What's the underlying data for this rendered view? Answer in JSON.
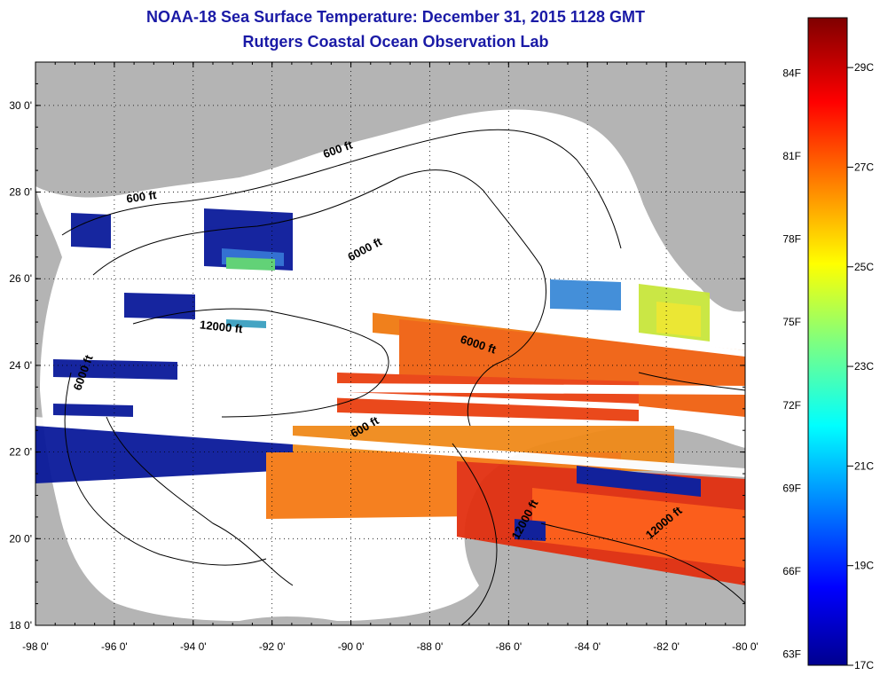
{
  "title": "NOAA-18 Sea Surface Temperature:  December 31, 2015 1128 GMT",
  "subtitle": "Rutgers Coastal Ocean Observation Lab",
  "map": {
    "lon_range": [
      -98,
      -80
    ],
    "lat_range": [
      18,
      31
    ],
    "lat_ticks": [
      {
        "value": 30,
        "label": "30 0'"
      },
      {
        "value": 28,
        "label": "28 0'"
      },
      {
        "value": 26,
        "label": "26 0'"
      },
      {
        "value": 24,
        "label": "24 0'"
      },
      {
        "value": 22,
        "label": "22 0'"
      },
      {
        "value": 20,
        "label": "20 0'"
      },
      {
        "value": 18,
        "label": "18 0'"
      }
    ],
    "lon_ticks": [
      {
        "value": -98,
        "label": "-98 0'"
      },
      {
        "value": -96,
        "label": "-96 0'"
      },
      {
        "value": -94,
        "label": "-94 0'"
      },
      {
        "value": -92,
        "label": "-92 0'"
      },
      {
        "value": -90,
        "label": "-90 0'"
      },
      {
        "value": -88,
        "label": "-88 0'"
      },
      {
        "value": -86,
        "label": "-86 0'"
      },
      {
        "value": -84,
        "label": "-84 0'"
      },
      {
        "value": -82,
        "label": "-82 0'"
      },
      {
        "value": -80,
        "label": "-80 0'"
      }
    ],
    "contour_labels": [
      {
        "text": "600 ft",
        "lon": -90.3,
        "lat": 28.9,
        "angle": -20
      },
      {
        "text": "600 ft",
        "lon": -95.3,
        "lat": 27.8,
        "angle": -8
      },
      {
        "text": "6000 ft",
        "lon": -89.6,
        "lat": 26.6,
        "angle": -28
      },
      {
        "text": "12000 ft",
        "lon": -93.3,
        "lat": 24.8,
        "angle": 6
      },
      {
        "text": "6000 ft",
        "lon": -96.7,
        "lat": 23.8,
        "angle": -70
      },
      {
        "text": "6000 ft",
        "lon": -86.8,
        "lat": 24.4,
        "angle": 18
      },
      {
        "text": "600 ft",
        "lon": -89.6,
        "lat": 22.5,
        "angle": -30
      },
      {
        "text": "12000 ft",
        "lon": -85.5,
        "lat": 20.4,
        "angle": -62
      },
      {
        "text": "12000 ft",
        "lon": -82.0,
        "lat": 20.3,
        "angle": -40
      }
    ],
    "colors": {
      "land": "#b4b4b4",
      "ocean_no_data": "#ffffff",
      "contour": "#000000",
      "title": "#1a1aa6"
    }
  },
  "colorbar": {
    "min_c": 17,
    "max_c": 30,
    "fahrenheit_labels": [
      "84F",
      "81F",
      "78F",
      "75F",
      "72F",
      "69F",
      "66F",
      "63F"
    ],
    "celsius_labels": [
      "29C",
      "27C",
      "25C",
      "23C",
      "21C",
      "19C",
      "17C"
    ]
  }
}
